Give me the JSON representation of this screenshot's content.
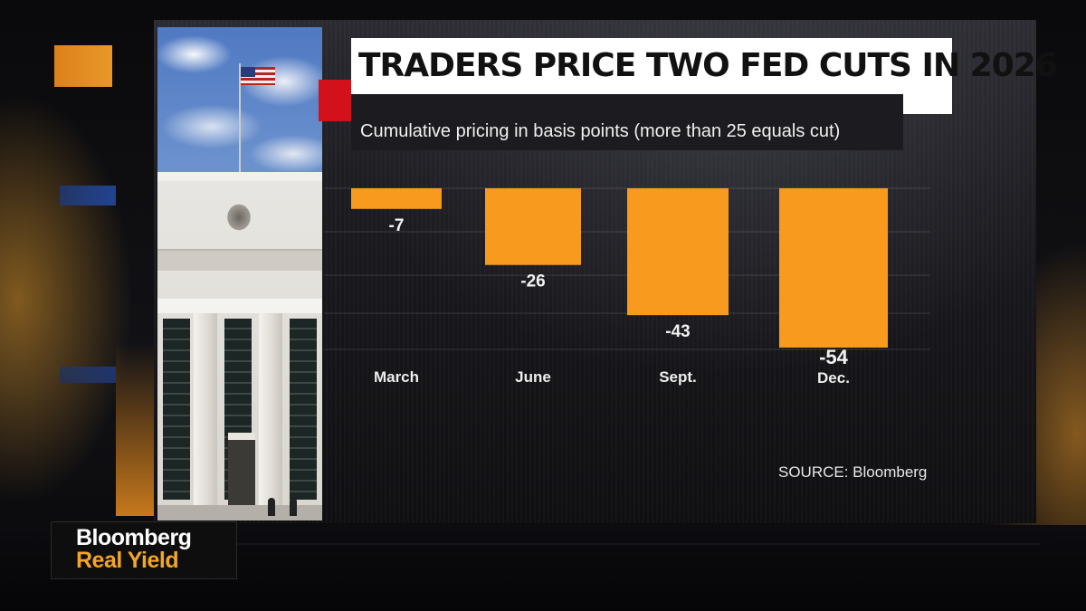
{
  "title": "TRADERS PRICE TWO FED CUTS IN 2026",
  "subtitle": "Cumulative pricing in basis points (more than 25 equals cut)",
  "source": "SOURCE: Bloomberg",
  "brand": {
    "name": "Bloomberg",
    "show": "Real Yield"
  },
  "colors": {
    "bar": "#f79a1d",
    "accent": "#d3111b",
    "brand_show": "#f3a623"
  },
  "chart_data": {
    "type": "bar",
    "categories": [
      "March",
      "June",
      "Sept.",
      "Dec."
    ],
    "values": [
      -7,
      -26,
      -43,
      -54
    ],
    "data_labels": [
      "-7",
      "-26",
      "-43",
      "-54"
    ],
    "title": "TRADERS PRICE TWO FED CUTS IN 2026",
    "subtitle": "Cumulative pricing in basis points (more than 25 equals cut)",
    "xlabel": "",
    "ylabel": "",
    "ylim": [
      -60,
      0
    ],
    "grid": true,
    "legend": "none"
  }
}
